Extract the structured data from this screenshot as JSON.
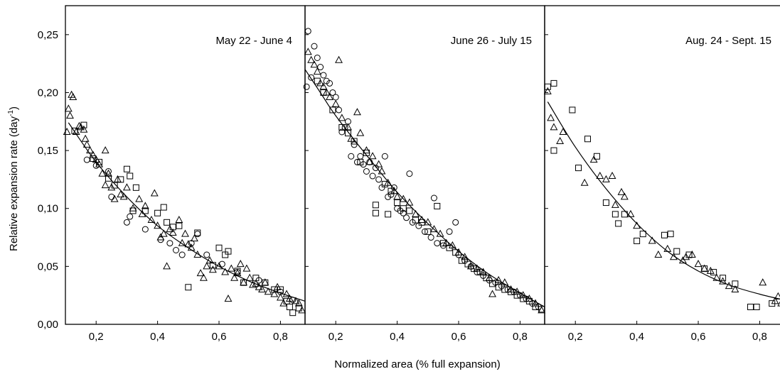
{
  "chart_data": {
    "type": "scatter",
    "ylabel": "Relative expansion rate (day",
    "ylabel_sup": "-1",
    "ylabel_close": ")",
    "xlabel": "Normalized area (% full expansion)",
    "ylim": [
      0,
      0.275
    ],
    "xlim": [
      0.1,
      0.88
    ],
    "y_ticks": [
      0.0,
      0.05,
      0.1,
      0.15,
      0.2,
      0.25
    ],
    "y_tick_labels": [
      "0,00",
      "0,05",
      "0,10",
      "0,15",
      "0,20",
      "0,25"
    ],
    "x_ticks": [
      0.2,
      0.4,
      0.6,
      0.8
    ],
    "x_tick_labels": [
      "0,2",
      "0,4",
      "0,6",
      "0,8"
    ],
    "panels": [
      {
        "title": "May 22 - June 4",
        "fit": [
          0.11,
          0.174,
          0.2,
          0.14,
          0.3,
          0.11,
          0.4,
          0.085,
          0.5,
          0.066,
          0.6,
          0.05,
          0.7,
          0.037,
          0.8,
          0.027,
          0.88,
          0.02
        ],
        "series": [
          {
            "marker": "triangle",
            "points": [
              0.105,
              0.166,
              0.11,
              0.186,
              0.115,
              0.18,
              0.12,
              0.198,
              0.125,
              0.196,
              0.135,
              0.166,
              0.145,
              0.171,
              0.15,
              0.17,
              0.16,
              0.168,
              0.165,
              0.16,
              0.17,
              0.155,
              0.18,
              0.15,
              0.19,
              0.146,
              0.2,
              0.142,
              0.21,
              0.138,
              0.22,
              0.13,
              0.23,
              0.15,
              0.23,
              0.12,
              0.24,
              0.13,
              0.25,
              0.118,
              0.26,
              0.108,
              0.27,
              0.125,
              0.28,
              0.112,
              0.29,
              0.11,
              0.3,
              0.118,
              0.32,
              0.1,
              0.34,
              0.108,
              0.35,
              0.095,
              0.36,
              0.102,
              0.38,
              0.09,
              0.39,
              0.113,
              0.4,
              0.085,
              0.41,
              0.075,
              0.42,
              0.078,
              0.43,
              0.05,
              0.44,
              0.082,
              0.45,
              0.079,
              0.47,
              0.09,
              0.48,
              0.07,
              0.49,
              0.078,
              0.5,
              0.069,
              0.51,
              0.066,
              0.52,
              0.074,
              0.53,
              0.06,
              0.54,
              0.044,
              0.55,
              0.04,
              0.56,
              0.05,
              0.57,
              0.055,
              0.58,
              0.047,
              0.6,
              0.05,
              0.62,
              0.045,
              0.63,
              0.022,
              0.64,
              0.048,
              0.65,
              0.04,
              0.66,
              0.044,
              0.67,
              0.052,
              0.68,
              0.036,
              0.69,
              0.048,
              0.7,
              0.04,
              0.71,
              0.034,
              0.72,
              0.035,
              0.73,
              0.032,
              0.74,
              0.03,
              0.75,
              0.036,
              0.76,
              0.028,
              0.78,
              0.026,
              0.79,
              0.032,
              0.8,
              0.023,
              0.81,
              0.018,
              0.82,
              0.026,
              0.83,
              0.022,
              0.85,
              0.02,
              0.86,
              0.018,
              0.87,
              0.012
            ]
          },
          {
            "marker": "square",
            "points": [
              0.13,
              0.167,
              0.16,
              0.172,
              0.19,
              0.143,
              0.21,
              0.14,
              0.24,
              0.126,
              0.26,
              0.12,
              0.28,
              0.125,
              0.3,
              0.134,
              0.31,
              0.128,
              0.32,
              0.098,
              0.33,
              0.118,
              0.36,
              0.098,
              0.4,
              0.096,
              0.42,
              0.101,
              0.43,
              0.088,
              0.45,
              0.084,
              0.47,
              0.085,
              0.5,
              0.032,
              0.53,
              0.079,
              0.58,
              0.051,
              0.6,
              0.066,
              0.62,
              0.06,
              0.63,
              0.063,
              0.66,
              0.046,
              0.68,
              0.036,
              0.72,
              0.04,
              0.75,
              0.036,
              0.78,
              0.03,
              0.8,
              0.03,
              0.82,
              0.02,
              0.83,
              0.015,
              0.84,
              0.01,
              0.86,
              0.014
            ]
          },
          {
            "marker": "circle",
            "points": [
              0.17,
              0.142,
              0.2,
              0.137,
              0.24,
              0.132,
              0.25,
              0.11,
              0.3,
              0.088,
              0.31,
              0.093,
              0.36,
              0.082,
              0.41,
              0.073,
              0.44,
              0.07,
              0.46,
              0.064,
              0.48,
              0.06,
              0.51,
              0.07,
              0.53,
              0.078,
              0.56,
              0.06,
              0.61,
              0.052,
              0.66,
              0.045,
              0.73,
              0.038,
              0.8,
              0.028,
              0.84,
              0.021
            ]
          }
        ]
      },
      {
        "title": "June 26 - July 15",
        "fit": [
          0.1,
          0.22,
          0.15,
          0.2,
          0.2,
          0.18,
          0.3,
          0.146,
          0.4,
          0.114,
          0.5,
          0.087,
          0.6,
          0.063,
          0.7,
          0.043,
          0.8,
          0.027,
          0.88,
          0.015
        ],
        "series": [
          {
            "marker": "triangle",
            "points": [
              0.11,
              0.235,
              0.12,
              0.228,
              0.13,
              0.224,
              0.14,
              0.218,
              0.15,
              0.208,
              0.16,
              0.205,
              0.17,
              0.2,
              0.18,
              0.196,
              0.2,
              0.19,
              0.21,
              0.228,
              0.22,
              0.178,
              0.24,
              0.17,
              0.25,
              0.16,
              0.27,
              0.183,
              0.28,
              0.165,
              0.3,
              0.15,
              0.31,
              0.14,
              0.32,
              0.145,
              0.34,
              0.138,
              0.35,
              0.132,
              0.37,
              0.122,
              0.39,
              0.115,
              0.4,
              0.11,
              0.42,
              0.108,
              0.44,
              0.105,
              0.46,
              0.095,
              0.48,
              0.09,
              0.5,
              0.088,
              0.52,
              0.082,
              0.54,
              0.078,
              0.56,
              0.07,
              0.58,
              0.068,
              0.6,
              0.062,
              0.62,
              0.058,
              0.64,
              0.05,
              0.66,
              0.048,
              0.68,
              0.045,
              0.7,
              0.04,
              0.71,
              0.026,
              0.73,
              0.038,
              0.75,
              0.036,
              0.77,
              0.03,
              0.79,
              0.028,
              0.81,
              0.025,
              0.83,
              0.022,
              0.85,
              0.018,
              0.87,
              0.012
            ]
          },
          {
            "marker": "square",
            "points": [
              0.1,
              0.241,
              0.14,
              0.21,
              0.16,
              0.2,
              0.19,
              0.185,
              0.22,
              0.17,
              0.24,
              0.165,
              0.26,
              0.158,
              0.28,
              0.14,
              0.3,
              0.148,
              0.33,
              0.103,
              0.33,
              0.096,
              0.36,
              0.121,
              0.37,
              0.095,
              0.38,
              0.115,
              0.4,
              0.105,
              0.42,
              0.1,
              0.44,
              0.098,
              0.46,
              0.09,
              0.48,
              0.088,
              0.5,
              0.08,
              0.53,
              0.102,
              0.55,
              0.07,
              0.57,
              0.066,
              0.59,
              0.062,
              0.61,
              0.055,
              0.63,
              0.052,
              0.65,
              0.048,
              0.67,
              0.045,
              0.69,
              0.04,
              0.71,
              0.035,
              0.73,
              0.032,
              0.75,
              0.03,
              0.77,
              0.028,
              0.79,
              0.025,
              0.81,
              0.022,
              0.83,
              0.02,
              0.85,
              0.015,
              0.87,
              0.013
            ]
          },
          {
            "marker": "circle",
            "points": [
              0.1,
              0.221,
              0.105,
              0.205,
              0.11,
              0.253,
              0.12,
              0.213,
              0.13,
              0.24,
              0.14,
              0.23,
              0.15,
              0.222,
              0.16,
              0.215,
              0.17,
              0.21,
              0.18,
              0.208,
              0.19,
              0.2,
              0.2,
              0.196,
              0.21,
              0.185,
              0.22,
              0.166,
              0.23,
              0.17,
              0.24,
              0.175,
              0.25,
              0.145,
              0.26,
              0.155,
              0.27,
              0.14,
              0.28,
              0.145,
              0.29,
              0.138,
              0.3,
              0.132,
              0.31,
              0.14,
              0.32,
              0.128,
              0.33,
              0.135,
              0.34,
              0.125,
              0.35,
              0.118,
              0.36,
              0.145,
              0.37,
              0.11,
              0.38,
              0.112,
              0.39,
              0.118,
              0.4,
              0.1,
              0.41,
              0.098,
              0.42,
              0.096,
              0.43,
              0.092,
              0.44,
              0.13,
              0.45,
              0.088,
              0.47,
              0.085,
              0.49,
              0.08,
              0.51,
              0.075,
              0.52,
              0.109,
              0.53,
              0.07,
              0.55,
              0.068,
              0.57,
              0.08,
              0.59,
              0.088,
              0.6,
              0.06,
              0.62,
              0.055,
              0.64,
              0.05,
              0.66,
              0.045,
              0.68,
              0.042,
              0.7,
              0.038,
              0.72,
              0.036,
              0.74,
              0.033,
              0.76,
              0.03,
              0.78,
              0.028,
              0.8,
              0.025,
              0.82,
              0.022,
              0.84,
              0.018,
              0.86,
              0.015,
              0.88,
              0.012
            ]
          }
        ]
      },
      {
        "title": "Aug. 24 - Sept. 15",
        "fit": [
          0.11,
          0.192,
          0.2,
          0.153,
          0.3,
          0.117,
          0.4,
          0.087,
          0.5,
          0.063,
          0.6,
          0.046,
          0.7,
          0.034,
          0.8,
          0.026,
          0.88,
          0.021
        ],
        "series": [
          {
            "marker": "triangle",
            "points": [
              0.11,
              0.201,
              0.12,
              0.178,
              0.13,
              0.17,
              0.15,
              0.158,
              0.16,
              0.166,
              0.23,
              0.122,
              0.26,
              0.142,
              0.28,
              0.128,
              0.3,
              0.125,
              0.32,
              0.128,
              0.33,
              0.103,
              0.35,
              0.114,
              0.36,
              0.11,
              0.38,
              0.095,
              0.4,
              0.085,
              0.45,
              0.072,
              0.47,
              0.06,
              0.5,
              0.065,
              0.52,
              0.058,
              0.55,
              0.055,
              0.56,
              0.058,
              0.58,
              0.06,
              0.6,
              0.052,
              0.62,
              0.048,
              0.64,
              0.046,
              0.66,
              0.04,
              0.68,
              0.037,
              0.7,
              0.033,
              0.72,
              0.03,
              0.81,
              0.036,
              0.85,
              0.02,
              0.86,
              0.024,
              0.87,
              0.018
            ]
          },
          {
            "marker": "square",
            "points": [
              0.11,
              0.205,
              0.13,
              0.208,
              0.13,
              0.15,
              0.19,
              0.185,
              0.21,
              0.135,
              0.24,
              0.16,
              0.27,
              0.145,
              0.3,
              0.105,
              0.33,
              0.095,
              0.34,
              0.087,
              0.36,
              0.095,
              0.4,
              0.072,
              0.42,
              0.078,
              0.49,
              0.077,
              0.51,
              0.078,
              0.53,
              0.063,
              0.57,
              0.06,
              0.62,
              0.048,
              0.65,
              0.045,
              0.68,
              0.04,
              0.72,
              0.035,
              0.77,
              0.015,
              0.79,
              0.015,
              0.84,
              0.018
            ]
          }
        ]
      }
    ]
  }
}
